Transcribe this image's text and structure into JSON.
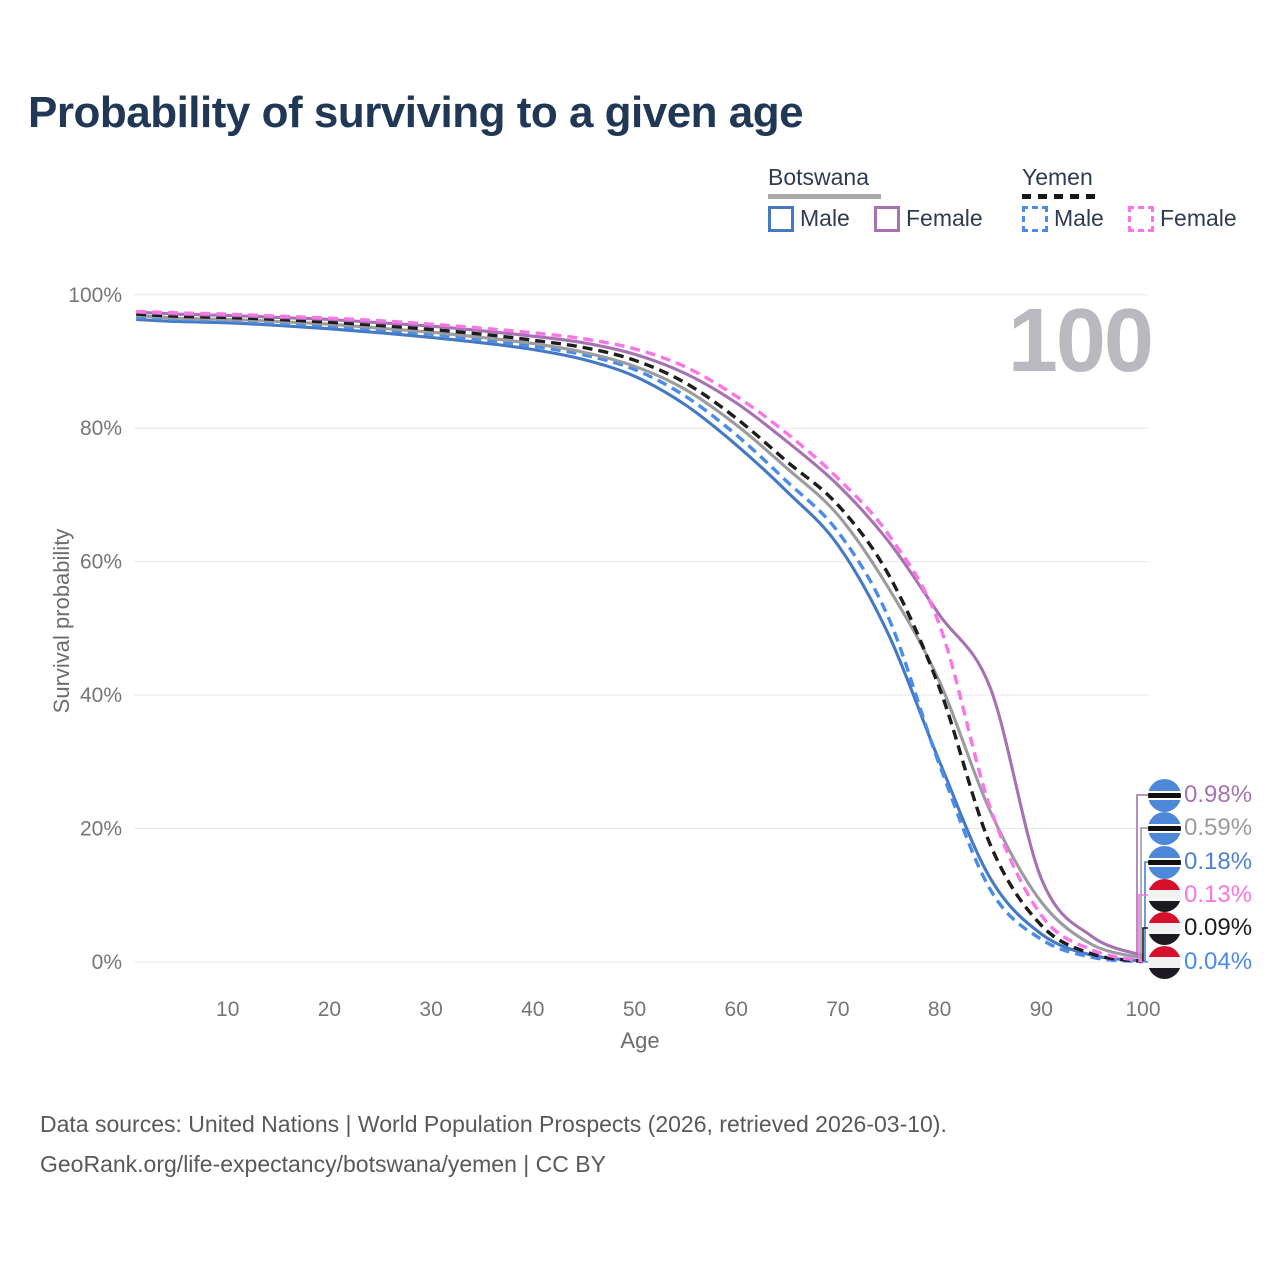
{
  "title": "Probability of surviving to a given age",
  "watermark": "100",
  "legend": {
    "groups": [
      {
        "country": "Botswana",
        "style": "solid",
        "items": [
          {
            "label": "Male",
            "color": "#4579c4"
          },
          {
            "label": "Female",
            "color": "#a672b2"
          }
        ]
      },
      {
        "country": "Yemen",
        "style": "dashed",
        "items": [
          {
            "label": "Male",
            "color": "#4a8ce8"
          },
          {
            "label": "Female",
            "color": "#fa75e5"
          }
        ]
      }
    ]
  },
  "axes": {
    "y_title": "Survival probability",
    "x_title": "Age",
    "y_tick_labels": [
      "0%",
      "20%",
      "40%",
      "60%",
      "80%",
      "100%"
    ],
    "y_tick_values": [
      0,
      20,
      40,
      60,
      80,
      100
    ],
    "x_tick_labels": [
      "10",
      "20",
      "30",
      "40",
      "50",
      "60",
      "70",
      "80",
      "90",
      "100"
    ],
    "x_tick_values": [
      10,
      20,
      30,
      40,
      50,
      60,
      70,
      80,
      90,
      100
    ]
  },
  "chart_data": {
    "type": "line",
    "title": "Probability of surviving to a given age",
    "xlabel": "Age",
    "ylabel": "Survival probability",
    "xlim": [
      0,
      100
    ],
    "ylim": [
      0,
      100
    ],
    "grid": true,
    "legend_position": "top-right",
    "x": [
      1,
      5,
      10,
      15,
      20,
      25,
      30,
      35,
      40,
      45,
      50,
      55,
      60,
      65,
      70,
      75,
      80,
      85,
      90,
      95,
      100
    ],
    "series": [
      {
        "name": "Botswana Male",
        "color": "#4579c4",
        "dash": "solid",
        "values": [
          96.3,
          96.0,
          95.8,
          95.4,
          94.9,
          94.3,
          93.6,
          92.8,
          91.8,
          90.3,
          87.8,
          83.5,
          77.5,
          70.5,
          62.5,
          49.0,
          30.0,
          12.5,
          4.2,
          1.0,
          0.18
        ]
      },
      {
        "name": "Yemen Male",
        "color": "#4a8ce8",
        "dash": "dashed",
        "values": [
          96.6,
          96.3,
          96.1,
          95.7,
          95.3,
          94.7,
          94.1,
          93.3,
          92.3,
          91.0,
          88.8,
          84.8,
          79.0,
          72.0,
          64.5,
          51.5,
          29.5,
          10.8,
          3.4,
          0.7,
          0.04
        ]
      },
      {
        "name": "Botswana",
        "color": "#9b9ba1",
        "dash": "solid",
        "values": [
          96.9,
          96.5,
          96.3,
          96.0,
          95.6,
          95.0,
          94.4,
          93.6,
          92.7,
          91.4,
          89.3,
          85.8,
          80.5,
          74.0,
          67.0,
          56.0,
          42.0,
          22.5,
          9.0,
          2.6,
          0.59
        ]
      },
      {
        "name": "Yemen",
        "color": "#1d1d1d",
        "dash": "dashed",
        "values": [
          97.1,
          96.8,
          96.6,
          96.3,
          95.9,
          95.4,
          94.8,
          94.1,
          93.2,
          92.1,
          90.2,
          86.8,
          81.5,
          75.0,
          68.5,
          58.0,
          41.0,
          17.5,
          5.5,
          1.2,
          0.09
        ]
      },
      {
        "name": "Botswana Female",
        "color": "#a672b2",
        "dash": "solid",
        "values": [
          97.4,
          97.1,
          96.9,
          96.6,
          96.3,
          95.8,
          95.3,
          94.6,
          93.8,
          92.8,
          91.1,
          88.2,
          83.8,
          78.0,
          71.5,
          63.0,
          52.0,
          41.0,
          12.5,
          3.8,
          0.98
        ]
      },
      {
        "name": "Yemen Female",
        "color": "#fa75e5",
        "dash": "dashed",
        "values": [
          97.5,
          97.3,
          97.1,
          96.8,
          96.5,
          96.1,
          95.6,
          95.0,
          94.3,
          93.4,
          91.9,
          89.2,
          84.8,
          79.2,
          72.5,
          64.0,
          50.5,
          23.0,
          7.0,
          1.8,
          0.13
        ]
      }
    ]
  },
  "end_labels": [
    {
      "value": "0.98%",
      "series": "Botswana Female",
      "flag": "botswana",
      "color": "#a672b2",
      "series_index": 4,
      "leader_x": 1137
    },
    {
      "value": "0.59%",
      "series": "Botswana",
      "flag": "botswana",
      "color": "#9b9ba1",
      "series_index": 2,
      "leader_x": 1141
    },
    {
      "value": "0.18%",
      "series": "Botswana Male",
      "flag": "botswana",
      "color": "#4f82cb",
      "series_index": 0,
      "leader_x": 1145
    },
    {
      "value": "0.13%",
      "series": "Yemen Female",
      "flag": "yemen",
      "color": "#fa75e5",
      "series_index": 5,
      "leader_x": 1139
    },
    {
      "value": "0.09%",
      "series": "Yemen",
      "flag": "yemen",
      "color": "#1d1d1d",
      "series_index": 3,
      "leader_x": 1143
    },
    {
      "value": "0.04%",
      "series": "Yemen Male",
      "flag": "yemen",
      "color": "#4a8ce8",
      "series_index": 1,
      "leader_x": 1147
    }
  ],
  "footer": {
    "line1": "Data sources: United Nations | World Population Prospects (2026, retrieved 2026-03-10).",
    "line2": "GeoRank.org/life-expectancy/botswana/yemen | CC BY"
  }
}
